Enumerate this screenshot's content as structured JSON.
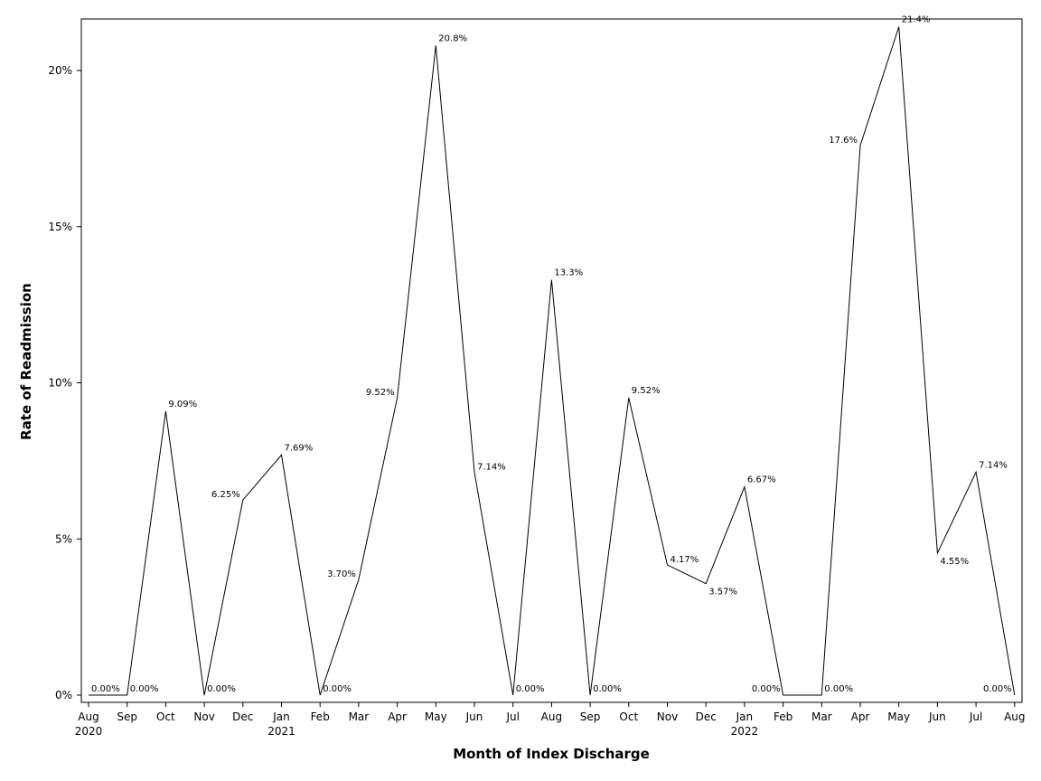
{
  "chart_data": {
    "type": "line",
    "xlabel": "Month of Index Discharge",
    "ylabel": "Rate of Readmission",
    "ylim": [
      0,
      21.4
    ],
    "grid": false,
    "yticks": [
      {
        "value": 0,
        "label": "0%"
      },
      {
        "value": 5,
        "label": "5%"
      },
      {
        "value": 10,
        "label": "10%"
      },
      {
        "value": 15,
        "label": "15%"
      },
      {
        "value": 20,
        "label": "20%"
      }
    ],
    "categories": [
      "Aug",
      "Sep",
      "Oct",
      "Nov",
      "Dec",
      "Jan",
      "Feb",
      "Mar",
      "Apr",
      "May",
      "Jun",
      "Jul",
      "Aug",
      "Sep",
      "Oct",
      "Nov",
      "Dec",
      "Jan",
      "Feb",
      "Mar",
      "Apr",
      "May",
      "Jun",
      "Jul",
      "Aug"
    ],
    "year_labels": [
      {
        "index": 0,
        "label": "2020"
      },
      {
        "index": 5,
        "label": "2021"
      },
      {
        "index": 17,
        "label": "2022"
      }
    ],
    "series": [
      {
        "values": [
          0,
          0,
          9.09,
          0,
          6.25,
          7.69,
          0,
          3.7,
          9.52,
          20.8,
          7.14,
          0,
          13.3,
          0,
          9.52,
          4.17,
          3.57,
          6.67,
          0,
          0,
          17.6,
          21.4,
          4.55,
          7.14,
          0
        ],
        "data_labels": [
          "0.00%",
          "0.00%",
          "9.09%",
          "0.00%",
          "6.25%",
          "7.69%",
          "0.00%",
          "3.70%",
          "9.52%",
          "20.8%",
          "7.14%",
          "0.00%",
          "13.3%",
          "0.00%",
          "9.52%",
          "4.17%",
          "3.57%",
          "6.67%",
          "0.00%",
          "0.00%",
          "17.6%",
          "21.4%",
          "4.55%",
          "7.14%",
          "0.00%"
        ]
      }
    ]
  }
}
